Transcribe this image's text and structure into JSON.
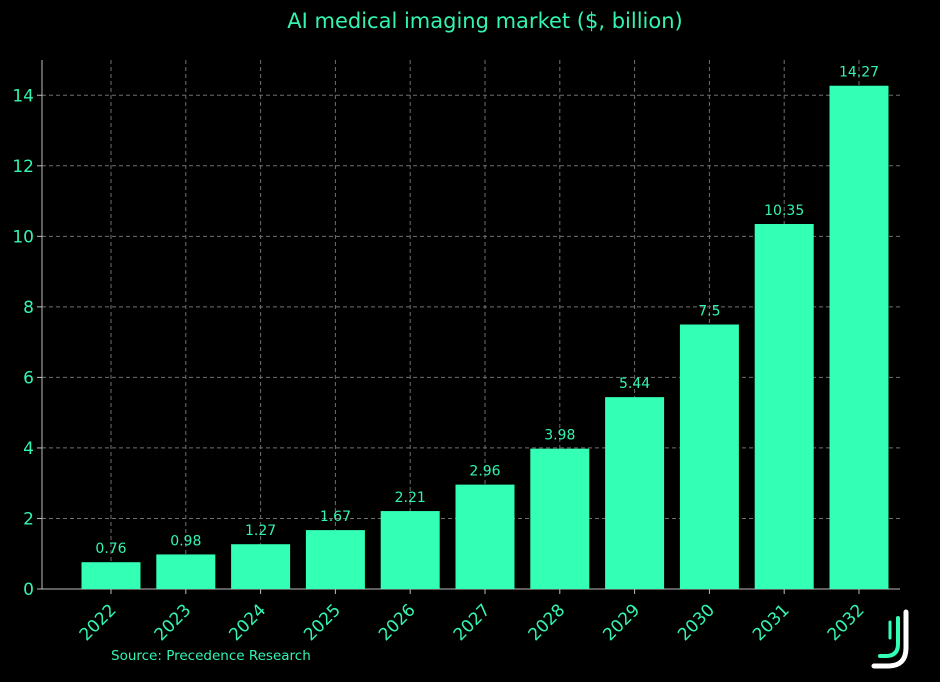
{
  "chart_data": {
    "type": "bar",
    "title": "AI medical imaging market ($, billion)",
    "categories": [
      "2022",
      "2023",
      "2024",
      "2025",
      "2026",
      "2027",
      "2028",
      "2029",
      "2030",
      "2031",
      "2032"
    ],
    "values": [
      0.76,
      0.98,
      1.27,
      1.67,
      2.21,
      2.96,
      3.98,
      5.44,
      7.5,
      10.35,
      14.27
    ],
    "data_labels": [
      "0.76",
      "0.98",
      "1.27",
      "1.67",
      "2.21",
      "2.96",
      "3.98",
      "5.44",
      "7.5",
      "10.35",
      "14.27"
    ],
    "xlabel": "",
    "ylabel": "",
    "ylim": [
      0,
      15
    ],
    "yticks": [
      0,
      2,
      4,
      6,
      8,
      10,
      12,
      14
    ],
    "grid": true,
    "legend": "none",
    "colors": {
      "bar": "#33ffb5",
      "text": "#33f5b0",
      "background": "#000000",
      "grid": "#6f6f6f"
    }
  },
  "source": "Source: Precedence Research",
  "logo": {
    "name": "brand-logo-icon",
    "colors": [
      "#ffffff",
      "#33ffb5"
    ]
  }
}
